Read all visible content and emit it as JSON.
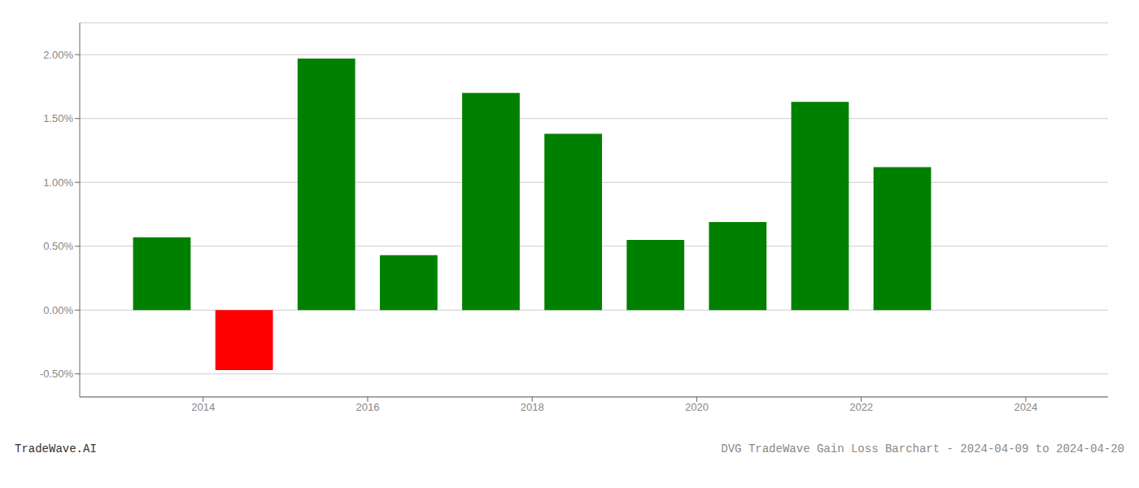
{
  "chart_data": {
    "type": "bar",
    "x": [
      2013.5,
      2014.5,
      2015.5,
      2016.5,
      2017.5,
      2018.5,
      2019.5,
      2020.5,
      2021.5,
      2022.5
    ],
    "values": [
      0.0057,
      -0.0047,
      0.0197,
      0.0043,
      0.017,
      0.0138,
      0.0055,
      0.0069,
      0.0163,
      0.0112
    ],
    "colors": [
      "#008000",
      "#ff0000",
      "#008000",
      "#008000",
      "#008000",
      "#008000",
      "#008000",
      "#008000",
      "#008000",
      "#008000"
    ],
    "xlim": [
      2012.5,
      2025.0
    ],
    "ylim": [
      -0.0068,
      0.0225
    ],
    "xticks": [
      2014,
      2016,
      2018,
      2020,
      2022,
      2024
    ],
    "yticks": [
      {
        "value": -0.005,
        "label": "-0.50%"
      },
      {
        "value": 0.0,
        "label": "0.00%"
      },
      {
        "value": 0.005,
        "label": "0.50%"
      },
      {
        "value": 0.01,
        "label": "1.00%"
      },
      {
        "value": 0.015,
        "label": "1.50%"
      },
      {
        "value": 0.02,
        "label": "2.00%"
      }
    ],
    "grid": true,
    "annotations": [
      "TradeWave.AI",
      "DVG TradeWave Gain Loss Barchart - 2024-04-09 to 2024-04-20"
    ]
  }
}
